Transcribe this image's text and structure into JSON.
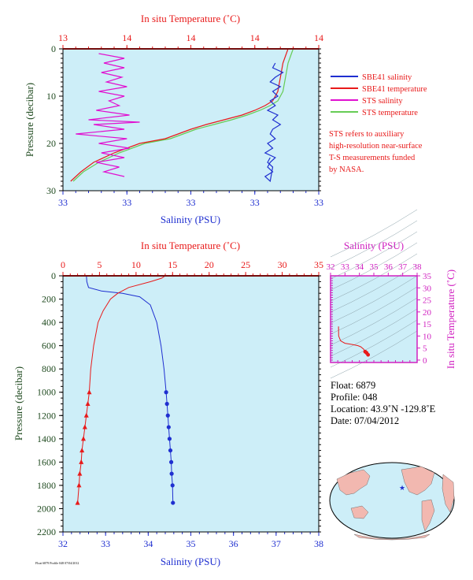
{
  "colors": {
    "plot_bg": "#cdeef8",
    "salinity": "#1f2fd0",
    "temperature": "#e81a1a",
    "sts_salinity": "#e010d0",
    "sts_temperature": "#66cc55",
    "pressure_axis": "#1f4a1f",
    "ts_axis": "#d020c0",
    "note": "#e81a1a"
  },
  "top_panel": {
    "temp_title": "In situ Temperature (˚C)",
    "temp_ticks": [
      "13",
      "14",
      "14",
      "14",
      "14"
    ],
    "sal_title": "Salinity (PSU)",
    "sal_ticks": [
      "33",
      "33",
      "33",
      "33",
      "33"
    ],
    "p_title": "Pressure (decibar)",
    "p_ticks": [
      "0",
      "10",
      "20",
      "30"
    ]
  },
  "legend": {
    "items": [
      {
        "label": "SBE41 salinity",
        "color": "#1f2fd0"
      },
      {
        "label": "SBE41 temperature",
        "color": "#e81a1a"
      },
      {
        "label": "STS salinity",
        "color": "#e010d0"
      },
      {
        "label": "STS temperature",
        "color": "#66cc55"
      }
    ],
    "note": [
      "STS refers to auxiliary",
      "high-resolution near-surface",
      "T-S measurements funded",
      "by NASA."
    ]
  },
  "bottom_panel": {
    "temp_title": "In situ Temperature (˚C)",
    "temp_ticks": [
      "0",
      "5",
      "10",
      "15",
      "20",
      "25",
      "30",
      "35"
    ],
    "sal_title": "Salinity (PSU)",
    "sal_ticks": [
      "32",
      "33",
      "34",
      "35",
      "36",
      "37",
      "38"
    ],
    "p_title": "Pressure (decibar)",
    "p_ticks": [
      "0",
      "200",
      "400",
      "600",
      "800",
      "1000",
      "1200",
      "1400",
      "1600",
      "1800",
      "2000",
      "2200"
    ]
  },
  "ts_panel": {
    "sal_title": "Salinity (PSU)",
    "sal_ticks": [
      "32",
      "33",
      "34",
      "35",
      "36",
      "37",
      "38"
    ],
    "temp_title": "In situ Temperature (˚C)",
    "temp_ticks": [
      "0",
      "5",
      "10",
      "15",
      "20",
      "25",
      "30",
      "35"
    ]
  },
  "info": {
    "float": "Float:  6879",
    "profile": "Profile:  048",
    "location": "Location:  43.9˚N  -129.8˚E",
    "date": "Date:  07/04/2012"
  },
  "footer": "Float 6879 Profile 048 07/04/2012",
  "chart_data": [
    {
      "type": "line",
      "title": "",
      "xlabel": "Salinity (PSU)",
      "x2label": "In situ Temperature (˚C)",
      "ylabel": "Pressure (decibar)",
      "ylim": [
        30,
        0
      ],
      "series": [
        {
          "name": "SBE41 salinity",
          "x": [
            0.83,
            0.82,
            0.86,
            0.83,
            0.81,
            0.85,
            0.82,
            0.84,
            0.81,
            0.83,
            0.8,
            0.84,
            0.82,
            0.85,
            0.82,
            0.81,
            0.83,
            0.8,
            0.82,
            0.79,
            0.83,
            0.81,
            0.8,
            0.82,
            0.79,
            0.81,
            0.82,
            0.8,
            0.81
          ],
          "y": [
            3,
            4,
            5,
            6,
            7,
            8,
            9,
            10,
            11,
            12,
            13,
            14,
            15,
            16,
            17,
            18,
            19,
            20,
            21,
            22,
            23,
            24,
            25,
            26,
            27,
            28,
            25,
            24,
            23
          ]
        },
        {
          "name": "SBE41 temperature",
          "x": [
            0.88,
            0.86,
            0.85,
            0.84,
            0.82,
            0.79,
            0.75,
            0.7,
            0.63,
            0.56,
            0.5,
            0.45,
            0.4,
            0.3,
            0.2,
            0.12,
            0.07,
            0.03
          ],
          "y": [
            0,
            3,
            6,
            9,
            11,
            12,
            13,
            14,
            15,
            16,
            17,
            18,
            19,
            20,
            22,
            24,
            26,
            28
          ]
        },
        {
          "name": "STS salinity",
          "x": [
            0.14,
            0.24,
            0.16,
            0.24,
            0.15,
            0.23,
            0.17,
            0.25,
            0.14,
            0.24,
            0.18,
            0.22,
            0.13,
            0.26,
            0.1,
            0.3,
            0.12,
            0.24,
            0.05,
            0.25,
            0.14,
            0.26,
            0.15,
            0.24,
            0.13,
            0.22,
            0.16,
            0.24
          ],
          "y": [
            1,
            2,
            3,
            4,
            5,
            6,
            7,
            8,
            9,
            10,
            11,
            12,
            13,
            14,
            15,
            15.5,
            16,
            17,
            18,
            19,
            20,
            21,
            22,
            23,
            24,
            25,
            26,
            27
          ]
        },
        {
          "name": "STS temperature",
          "x": [
            0.9,
            0.88,
            0.87,
            0.86,
            0.84,
            0.81,
            0.77,
            0.72,
            0.66,
            0.59,
            0.52,
            0.47,
            0.42,
            0.32,
            0.22,
            0.14,
            0.08,
            0.04
          ],
          "y": [
            0,
            3,
            6,
            9,
            11,
            12,
            13,
            14,
            15,
            16,
            17,
            18,
            19,
            20,
            22,
            24,
            26,
            28
          ]
        }
      ]
    },
    {
      "type": "line",
      "title": "",
      "xlabel": "Salinity (PSU)",
      "x2label": "In situ Temperature (˚C)",
      "ylabel": "Pressure (decibar)",
      "xlim": [
        32,
        38
      ],
      "x2lim": [
        0,
        35
      ],
      "ylim": [
        2200,
        0
      ],
      "series": [
        {
          "name": "Salinity",
          "x": [
            32.55,
            32.56,
            32.6,
            32.9,
            33.4,
            33.8,
            34.05,
            34.2,
            34.3,
            34.37,
            34.42,
            34.44,
            34.46,
            34.48,
            34.5,
            34.52,
            34.54,
            34.55,
            34.57,
            34.58
          ],
          "y": [
            0,
            50,
            100,
            130,
            150,
            180,
            250,
            400,
            600,
            800,
            1000,
            1100,
            1200,
            1300,
            1400,
            1500,
            1600,
            1700,
            1800,
            1950
          ]
        },
        {
          "name": "Temperature",
          "x": [
            14,
            13.5,
            12,
            9,
            7.5,
            6.5,
            5.5,
            4.8,
            4.2,
            3.8,
            3.6,
            3.4,
            3.2,
            3.0,
            2.8,
            2.6,
            2.5,
            2.3,
            2.2,
            2.0
          ],
          "y": [
            0,
            20,
            50,
            100,
            150,
            200,
            300,
            400,
            600,
            800,
            1000,
            1100,
            1200,
            1300,
            1400,
            1500,
            1600,
            1700,
            1800,
            1950
          ]
        }
      ]
    },
    {
      "type": "scatter",
      "title": "",
      "xlabel": "Salinity (PSU)",
      "ylabel": "In situ Temperature (˚C)",
      "xlim": [
        32,
        38
      ],
      "ylim": [
        -1,
        35
      ],
      "series": [
        {
          "name": "T-S",
          "x": [
            32.55,
            32.56,
            32.7,
            33.0,
            33.5,
            33.9,
            34.1,
            34.3,
            34.4,
            34.5,
            34.6
          ],
          "y": [
            14,
            10,
            8,
            7,
            6.5,
            6,
            5.5,
            4.5,
            3.5,
            3,
            2.2
          ]
        }
      ]
    }
  ]
}
